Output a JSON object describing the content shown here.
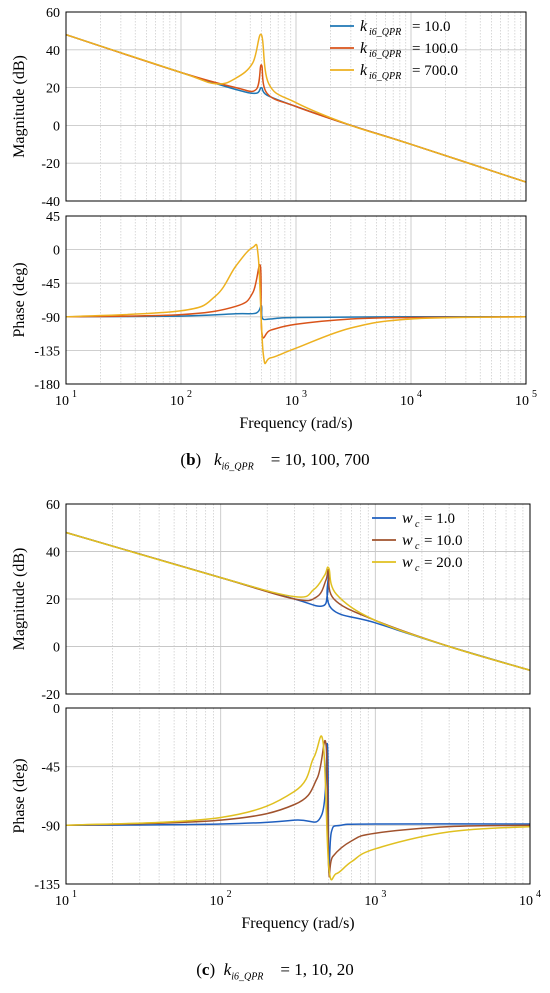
{
  "figure_b": {
    "caption": {
      "letter": "b",
      "symbol": "k",
      "subscript": "i6_QPR",
      "values": "= 10, 100, 700"
    }
  },
  "figure_c": {
    "caption": {
      "letter": "c",
      "symbol": "k",
      "subscript": "i6_QPR",
      "values": "= 1, 10, 20"
    }
  },
  "chart_data": [
    {
      "type": "line",
      "panel": "b-magnitude",
      "ylabel": "Magnitude  (dB)",
      "xscale": "log",
      "xlim": [
        10,
        100000
      ],
      "ylim": [
        -40,
        60
      ],
      "yticks": [
        -40,
        -20,
        0,
        20,
        40,
        60
      ],
      "grid": true,
      "legend_position": "top-right",
      "series": [
        {
          "name": "k_{i6_QPR} = 10.0",
          "legend": "= 10.0",
          "color": "#1f77b4",
          "x": [
            10,
            100,
            300,
            450,
            500,
            560,
            1000,
            3000,
            10000,
            100000
          ],
          "y": [
            48,
            28,
            19,
            17,
            20,
            16,
            10,
            0,
            -10,
            -30
          ]
        },
        {
          "name": "k_{i6_QPR} = 100.0",
          "legend": "= 100.0",
          "color": "#d95319",
          "x": [
            10,
            100,
            300,
            450,
            500,
            560,
            1000,
            3000,
            10000,
            100000
          ],
          "y": [
            48,
            28,
            20,
            19,
            32,
            17,
            10,
            0,
            -10,
            -30
          ]
        },
        {
          "name": "k_{i6_QPR} = 700.0",
          "legend": "= 700.0",
          "color": "#edb120",
          "x": [
            10,
            100,
            200,
            300,
            420,
            500,
            580,
            1000,
            3000,
            10000,
            100000
          ],
          "y": [
            48,
            28,
            22,
            25,
            33,
            48,
            22,
            12,
            0,
            -10,
            -30
          ]
        }
      ]
    },
    {
      "type": "line",
      "panel": "b-phase",
      "ylabel": "Phase  (deg)",
      "xlabel": "Frequency  (rad/s)",
      "xscale": "log",
      "xlim": [
        10,
        100000
      ],
      "ylim": [
        -180,
        45
      ],
      "yticks": [
        -180,
        -135,
        -90,
        -45,
        0,
        45
      ],
      "xticklabels": [
        "10^1",
        "10^2",
        "10^3",
        "10^4",
        "10^5"
      ],
      "grid": true,
      "series": [
        {
          "name": "k_{i6_QPR} = 10.0",
          "color": "#1f77b4",
          "x": [
            10,
            100,
            300,
            450,
            500,
            510,
            600,
            1000,
            10000,
            100000
          ],
          "y": [
            -90,
            -89,
            -86,
            -85,
            -75,
            -92,
            -93,
            -91,
            -90,
            -90
          ]
        },
        {
          "name": "k_{i6_QPR} = 100.0",
          "color": "#d95319",
          "x": [
            10,
            100,
            300,
            420,
            490,
            505,
            600,
            1000,
            3000,
            10000,
            100000
          ],
          "y": [
            -90,
            -87,
            -76,
            -58,
            -22,
            -112,
            -108,
            -100,
            -93,
            -91,
            -90
          ]
        },
        {
          "name": "k_{i6_QPR} = 700.0",
          "color": "#edb120",
          "x": [
            10,
            100,
            200,
            300,
            420,
            470,
            520,
            600,
            1000,
            3000,
            10000,
            100000
          ],
          "y": [
            -90,
            -82,
            -62,
            -22,
            3,
            -10,
            -140,
            -145,
            -132,
            -105,
            -93,
            -90
          ]
        }
      ]
    },
    {
      "type": "line",
      "panel": "c-magnitude",
      "ylabel": "Magnitude  (dB)",
      "xscale": "log",
      "xlim": [
        10,
        10000
      ],
      "ylim": [
        -20,
        60
      ],
      "yticks": [
        -20,
        0,
        20,
        40,
        60
      ],
      "grid": true,
      "legend_position": "top-right",
      "series": [
        {
          "name": "w_c = 1.0",
          "legend": "= 1.0",
          "color": "#1f5fbf",
          "x": [
            10,
            100,
            300,
            450,
            490,
            500,
            520,
            1000,
            3000,
            10000
          ],
          "y": [
            48,
            29,
            20,
            17,
            22,
            31,
            16,
            10,
            0,
            -10
          ]
        },
        {
          "name": "w_c = 10.0",
          "legend": "= 10.0",
          "color": "#a0522d",
          "x": [
            10,
            100,
            300,
            420,
            480,
            500,
            540,
            1000,
            3000,
            10000
          ],
          "y": [
            48,
            29,
            20,
            21,
            28,
            32,
            20,
            11,
            0,
            -10
          ]
        },
        {
          "name": "w_c = 20.0",
          "legend": "= 20.0",
          "color": "#e0c020",
          "x": [
            10,
            100,
            300,
            400,
            470,
            500,
            560,
            1000,
            3000,
            10000
          ],
          "y": [
            48,
            29,
            21,
            24,
            30,
            33,
            22,
            11,
            0,
            -10
          ]
        }
      ]
    },
    {
      "type": "line",
      "panel": "c-phase",
      "ylabel": "Phase  (deg)",
      "xlabel": "Frequency  (rad/s)",
      "xscale": "log",
      "xlim": [
        10,
        10000
      ],
      "ylim": [
        -135,
        0
      ],
      "yticks": [
        -135,
        -90,
        -45,
        0
      ],
      "xticklabels": [
        "10^1",
        "10^2",
        "10^3",
        "10^4"
      ],
      "grid": true,
      "series": [
        {
          "name": "w_c = 1.0",
          "color": "#1f5fbf",
          "x": [
            10,
            100,
            300,
            450,
            490,
            500,
            520,
            600,
            1000,
            10000
          ],
          "y": [
            -90,
            -89,
            -86,
            -82,
            -28,
            -124,
            -95,
            -90,
            -89,
            -89
          ]
        },
        {
          "name": "w_c = 10.0",
          "color": "#a0522d",
          "x": [
            10,
            100,
            300,
            420,
            480,
            500,
            530,
            700,
            1000,
            3000,
            10000
          ],
          "y": [
            -90,
            -86,
            -74,
            -54,
            -28,
            -124,
            -114,
            -102,
            -96,
            -91,
            -90
          ]
        },
        {
          "name": "w_c = 20.0",
          "color": "#e0c020",
          "x": [
            10,
            100,
            300,
            400,
            460,
            500,
            560,
            700,
            1000,
            3000,
            10000
          ],
          "y": [
            -90,
            -84,
            -64,
            -38,
            -27,
            -122,
            -127,
            -118,
            -108,
            -95,
            -91
          ]
        }
      ]
    }
  ]
}
